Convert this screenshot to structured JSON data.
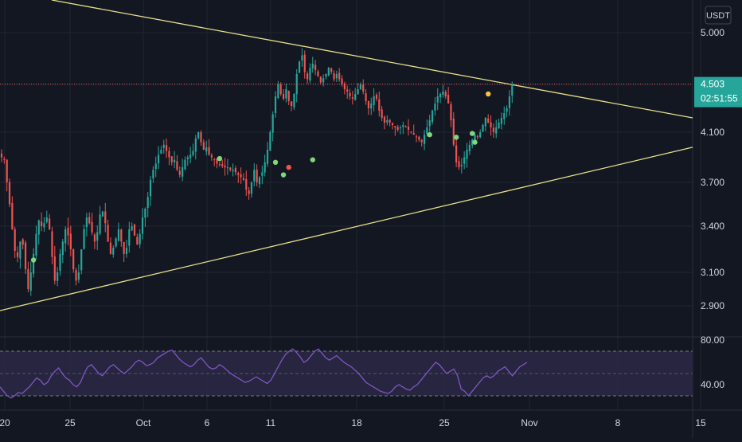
{
  "chart_data": [
    {
      "type": "candlestick",
      "currency": "USDT",
      "x_ticks": [
        "20",
        "25",
        "Oct",
        "6",
        "11",
        "18",
        "25",
        "Nov",
        "8",
        "15"
      ],
      "y_ticks": [
        "5.000",
        "4.500",
        "4.100",
        "3.700",
        "3.400",
        "3.100",
        "2.900"
      ],
      "ylim": [
        2.78,
        5.15
      ],
      "last_price": "4.503",
      "countdown": "02:51:55",
      "colors": {
        "up": "#26a69a",
        "down": "#ef5350",
        "trendline": "#e6df8a",
        "price_line": "#ef5350"
      },
      "trendlines": [
        {
          "from": [
            "Sep 16",
            5.12
          ],
          "to": [
            "Nov 18",
            4.22
          ]
        },
        {
          "from": [
            "Sep 14",
            2.88
          ],
          "to": [
            "Nov 18",
            3.98
          ]
        }
      ],
      "closes": [
        3.9,
        3.88,
        3.7,
        3.55,
        3.38,
        3.24,
        3.2,
        3.3,
        3.28,
        3.12,
        3.0,
        3.1,
        3.22,
        3.35,
        3.44,
        3.4,
        3.42,
        3.46,
        3.38,
        3.2,
        3.05,
        3.1,
        3.22,
        3.3,
        3.38,
        3.34,
        3.25,
        3.12,
        3.05,
        3.1,
        3.25,
        3.38,
        3.46,
        3.42,
        3.36,
        3.3,
        3.36,
        3.48,
        3.5,
        3.42,
        3.3,
        3.22,
        3.26,
        3.32,
        3.38,
        3.3,
        3.22,
        3.26,
        3.38,
        3.4,
        3.34,
        3.28,
        3.35,
        3.46,
        3.52,
        3.6,
        3.72,
        3.8,
        3.85,
        3.92,
        3.96,
        4.0,
        3.95,
        3.9,
        3.86,
        3.88,
        3.8,
        3.76,
        3.82,
        3.88,
        3.9,
        3.92,
        3.95,
        4.05,
        4.1,
        4.02,
        3.96,
        3.98,
        3.92,
        3.9,
        3.88,
        3.85,
        3.84,
        3.83,
        3.82,
        3.82,
        3.8,
        3.8,
        3.78,
        3.76,
        3.74,
        3.72,
        3.65,
        3.62,
        3.7,
        3.8,
        3.7,
        3.74,
        3.78,
        3.86,
        3.96,
        4.1,
        4.25,
        4.4,
        4.5,
        4.42,
        4.38,
        4.46,
        4.36,
        4.32,
        4.42,
        4.6,
        4.72,
        4.78,
        4.62,
        4.55,
        4.66,
        4.7,
        4.64,
        4.58,
        4.52,
        4.56,
        4.6,
        4.66,
        4.62,
        4.55,
        4.6,
        4.55,
        4.5,
        4.46,
        4.44,
        4.4,
        4.38,
        4.42,
        4.46,
        4.5,
        4.44,
        4.36,
        4.3,
        4.34,
        4.4,
        4.38,
        4.28,
        4.22,
        4.18,
        4.2,
        4.18,
        4.16,
        4.14,
        4.12,
        4.14,
        4.16,
        4.14,
        4.12,
        4.1,
        4.08,
        4.06,
        4.04,
        4.02,
        4.08,
        4.14,
        4.2,
        4.28,
        4.34,
        4.4,
        4.42,
        4.44,
        4.4,
        4.34,
        4.2,
        4.0,
        3.86,
        3.82,
        3.84,
        3.9,
        3.96,
        4.0,
        4.04,
        4.08,
        4.06,
        4.1,
        4.16,
        4.22,
        4.18,
        4.14,
        4.1,
        4.14,
        4.18,
        4.22,
        4.26,
        4.3,
        4.4,
        4.5
      ],
      "markers": [
        {
          "bar": 12,
          "value": 3.18,
          "color": "#7fd67f"
        },
        {
          "bar": 82,
          "value": 3.89,
          "color": "#7fd67f"
        },
        {
          "bar": 103,
          "value": 3.86,
          "color": "#7fd67f"
        },
        {
          "bar": 106,
          "value": 3.76,
          "color": "#7fd67f"
        },
        {
          "bar": 108,
          "value": 3.82,
          "color": "#ef5350"
        },
        {
          "bar": 117,
          "value": 3.88,
          "color": "#7fd67f"
        },
        {
          "bar": 161,
          "value": 4.08,
          "color": "#7fd67f"
        },
        {
          "bar": 171,
          "value": 4.06,
          "color": "#7fd67f"
        },
        {
          "bar": 177,
          "value": 4.09,
          "color": "#7fd67f"
        },
        {
          "bar": 178,
          "value": 4.02,
          "color": "#7fd67f"
        },
        {
          "bar": 183,
          "value": 4.42,
          "color": "#f5c542"
        }
      ]
    },
    {
      "type": "line",
      "y_ticks": [
        "80.00",
        "40.00"
      ],
      "ylim": [
        20,
        80
      ],
      "band": [
        30,
        70
      ],
      "colors": {
        "line": "#7e57c2",
        "band": "#2a2743"
      },
      "series": [
        {
          "values": [
            38,
            34,
            30,
            28,
            30,
            33,
            32,
            35,
            38,
            42,
            46,
            44,
            40,
            42,
            48,
            52,
            55,
            50,
            46,
            44,
            40,
            38,
            42,
            50,
            56,
            58,
            54,
            50,
            48,
            52,
            56,
            58,
            55,
            52,
            50,
            53,
            56,
            60,
            62,
            60,
            57,
            58,
            60,
            64,
            66,
            68,
            70,
            71,
            67,
            63,
            60,
            58,
            56,
            58,
            62,
            64,
            60,
            56,
            54,
            55,
            58,
            56,
            53,
            50,
            48,
            46,
            44,
            42,
            43,
            45,
            47,
            45,
            43,
            41,
            44,
            50,
            56,
            62,
            67,
            70,
            72,
            69,
            65,
            60,
            62,
            66,
            70,
            72,
            68,
            64,
            62,
            64,
            66,
            63,
            60,
            58,
            56,
            53,
            50,
            46,
            42,
            40,
            38,
            36,
            34,
            33,
            32,
            34,
            38,
            40,
            38,
            36,
            35,
            38,
            40,
            44,
            48,
            52,
            56,
            60,
            58,
            54,
            50,
            52,
            54,
            48,
            36,
            34,
            30,
            34,
            38,
            42,
            46,
            48,
            46,
            48,
            52,
            54,
            56,
            52,
            48,
            52,
            56,
            58,
            60
          ]
        }
      ]
    }
  ]
}
